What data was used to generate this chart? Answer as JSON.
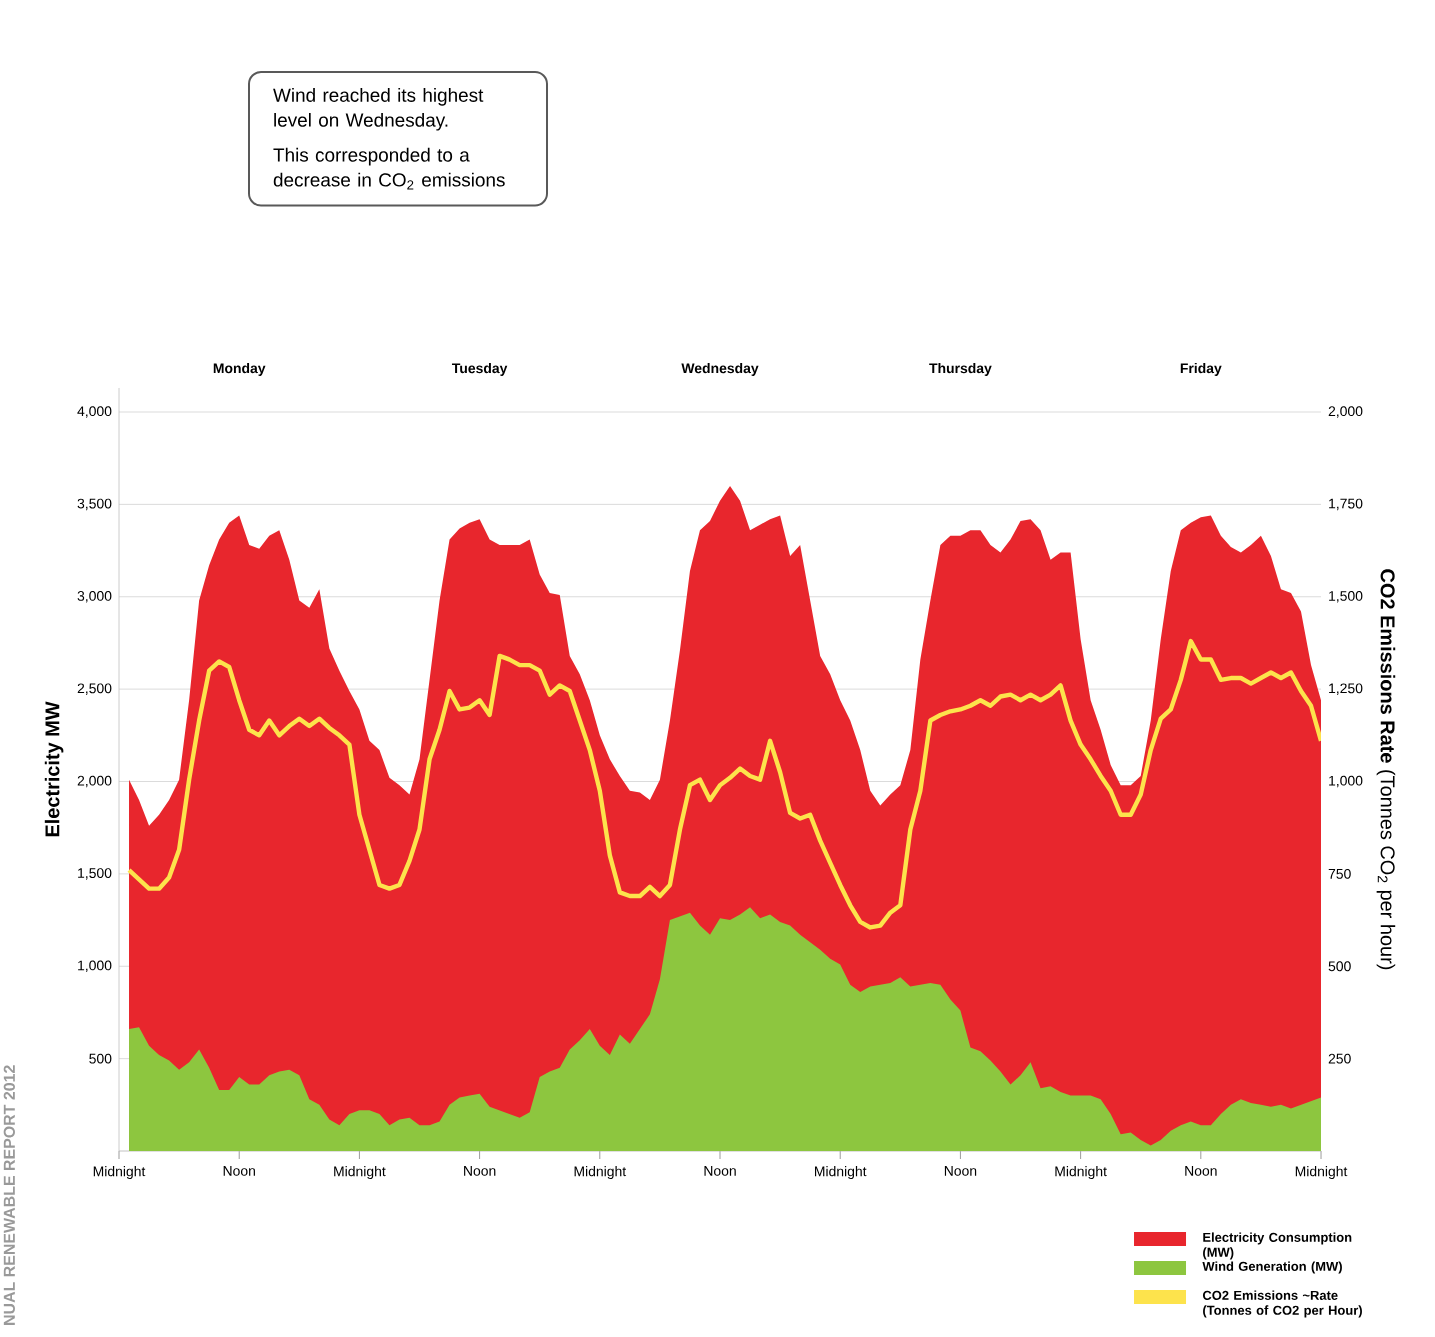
{
  "chart_data": {
    "type": "area",
    "ylabel": "Electricity MW",
    "y2label": "**CO2 Emissions Rate** (Tonnes CO$_{2}$ per hour)",
    "annotations": [
      "Monday",
      "Tuesday",
      "Wednesday",
      "Thursday",
      "Friday",
      "Wind reached its highest level on Wednesday.",
      "This corresponded to a decrease in CO$_{2}$ emissions",
      "NUAL RENEWABLE REPORT 2012"
    ],
    "categories": [
      "Midnight",
      null,
      null,
      null,
      null,
      null,
      null,
      null,
      null,
      null,
      null,
      null,
      "Noon",
      null,
      null,
      null,
      null,
      null,
      null,
      null,
      null,
      null,
      null,
      null,
      "Midnight",
      null,
      null,
      null,
      null,
      null,
      null,
      null,
      null,
      null,
      null,
      null,
      "Noon",
      null,
      null,
      null,
      null,
      null,
      null,
      null,
      null,
      null,
      null,
      null,
      "Midnight",
      null,
      null,
      null,
      null,
      null,
      null,
      null,
      null,
      null,
      null,
      null,
      "Noon",
      null,
      null,
      null,
      null,
      null,
      null,
      null,
      null,
      null,
      null,
      null,
      "Midnight",
      null,
      null,
      null,
      null,
      null,
      null,
      null,
      null,
      null,
      null,
      null,
      "Noon",
      null,
      null,
      null,
      null,
      null,
      null,
      null,
      null,
      null,
      null,
      null,
      "Midnight",
      null,
      null,
      null,
      null,
      null,
      null,
      null,
      null,
      null,
      null,
      null,
      "Noon",
      null,
      null,
      null,
      null,
      null,
      null,
      null,
      null,
      null,
      null,
      null,
      "Midnight"
    ],
    "ylim": [
      0,
      4130
    ],
    "yticks": [
      {
        "value": 500,
        "label": "500"
      },
      {
        "value": 1000,
        "label": "1,000"
      },
      {
        "value": 1500,
        "label": "1,500"
      },
      {
        "value": 2000,
        "label": "2,000"
      },
      {
        "value": 2500,
        "label": "2,500"
      },
      {
        "value": 3000,
        "label": "3,000"
      },
      {
        "value": 3500,
        "label": "3,500"
      },
      {
        "value": 4000,
        "label": "4,000"
      }
    ],
    "y2lim": [
      0,
      2065
    ],
    "y2ticks": [
      {
        "value": 250,
        "label": "250"
      },
      {
        "value": 500,
        "label": "500"
      },
      {
        "value": 750,
        "label": "750"
      },
      {
        "value": 1000,
        "label": "1,000"
      },
      {
        "value": 1250,
        "label": "1,250"
      },
      {
        "value": 1500,
        "label": "1,500"
      },
      {
        "value": 1750,
        "label": "1,750"
      },
      {
        "value": 2000,
        "label": "2,000"
      }
    ],
    "grid": "y",
    "legend": "bottom right",
    "series": [
      {
        "name": "Electricity Consumption (MW)",
        "color": "#e8262d",
        "values": [
          null,
          2010,
          1900,
          1760,
          1820,
          1900,
          2010,
          2440,
          2980,
          3170,
          3310,
          3400,
          3440,
          3280,
          3260,
          3330,
          3360,
          3200,
          2980,
          2940,
          3040,
          2720,
          2600,
          2490,
          2390,
          2220,
          2170,
          2020,
          1980,
          1930,
          2120,
          2550,
          2980,
          3310,
          3370,
          3400,
          3420,
          3310,
          3280,
          3280,
          3280,
          3310,
          3120,
          3020,
          3010,
          2680,
          2580,
          2440,
          2250,
          2120,
          2030,
          1950,
          1940,
          1900,
          2010,
          2330,
          2710,
          3140,
          3360,
          3410,
          3520,
          3600,
          3520,
          3360,
          3390,
          3420,
          3440,
          3220,
          3280,
          2980,
          2680,
          2580,
          2440,
          2330,
          2170,
          1950,
          1870,
          1930,
          1980,
          2170,
          2660,
          2980,
          3280,
          3330,
          3330,
          3360,
          3360,
          3280,
          3240,
          3310,
          3410,
          3420,
          3360,
          3200,
          3240,
          3240,
          2770,
          2440,
          2280,
          2090,
          1980,
          1980,
          2030,
          2330,
          2770,
          3140,
          3360,
          3400,
          3430,
          3440,
          3330,
          3270,
          3240,
          3280,
          3330,
          3220,
          3040,
          3020,
          2920,
          2630,
          2440
        ]
      },
      {
        "name": "Wind Generation (MW)",
        "color": "#8dc63f",
        "values": [
          null,
          660,
          670,
          570,
          520,
          490,
          440,
          480,
          550,
          450,
          330,
          330,
          400,
          360,
          360,
          410,
          430,
          440,
          410,
          280,
          250,
          170,
          140,
          200,
          220,
          220,
          200,
          140,
          170,
          180,
          140,
          140,
          160,
          250,
          290,
          300,
          310,
          240,
          220,
          200,
          180,
          210,
          400,
          430,
          450,
          550,
          600,
          660,
          570,
          520,
          630,
          580,
          660,
          740,
          930,
          1250,
          1270,
          1290,
          1220,
          1170,
          1260,
          1250,
          1280,
          1320,
          1260,
          1280,
          1240,
          1220,
          1170,
          1130,
          1090,
          1040,
          1010,
          900,
          860,
          890,
          900,
          910,
          940,
          890,
          900,
          910,
          900,
          820,
          760,
          560,
          540,
          490,
          430,
          360,
          410,
          480,
          340,
          350,
          320,
          300,
          300,
          300,
          280,
          200,
          90,
          100,
          60,
          30,
          60,
          110,
          140,
          160,
          140,
          140,
          200,
          250,
          280,
          260,
          250,
          240,
          250,
          230,
          250,
          270,
          290
        ]
      },
      {
        "name": "CO2 Emissions ~Rate (Tonnes of CO2 per Hour)",
        "type": "line",
        "axis": "y2",
        "color": "#fde34c",
        "values": [
          null,
          760,
          735,
          710,
          710,
          740,
          815,
          1005,
          1165,
          1300,
          1325,
          1310,
          1220,
          1140,
          1125,
          1165,
          1125,
          1150,
          1170,
          1150,
          1170,
          1145,
          1125,
          1100,
          910,
          815,
          720,
          710,
          720,
          785,
          870,
          1060,
          1140,
          1245,
          1195,
          1200,
          1220,
          1180,
          1340,
          1330,
          1315,
          1315,
          1300,
          1235,
          1260,
          1245,
          1165,
          1085,
          975,
          800,
          700,
          690,
          690,
          715,
          690,
          720,
          870,
          990,
          1005,
          950,
          990,
          1010,
          1035,
          1015,
          1005,
          1110,
          1025,
          915,
          900,
          910,
          840,
          780,
          720,
          665,
          620,
          605,
          610,
          645,
          665,
          870,
          975,
          1165,
          1180,
          1190,
          1195,
          1205,
          1220,
          1205,
          1230,
          1235,
          1220,
          1235,
          1220,
          1235,
          1260,
          1165,
          1100,
          1060,
          1015,
          975,
          910,
          910,
          965,
          1085,
          1170,
          1195,
          1275,
          1380,
          1330,
          1330,
          1275,
          1280,
          1280,
          1265,
          1280,
          1295,
          1280,
          1295,
          1245,
          1205,
          1110
        ]
      }
    ]
  }
}
